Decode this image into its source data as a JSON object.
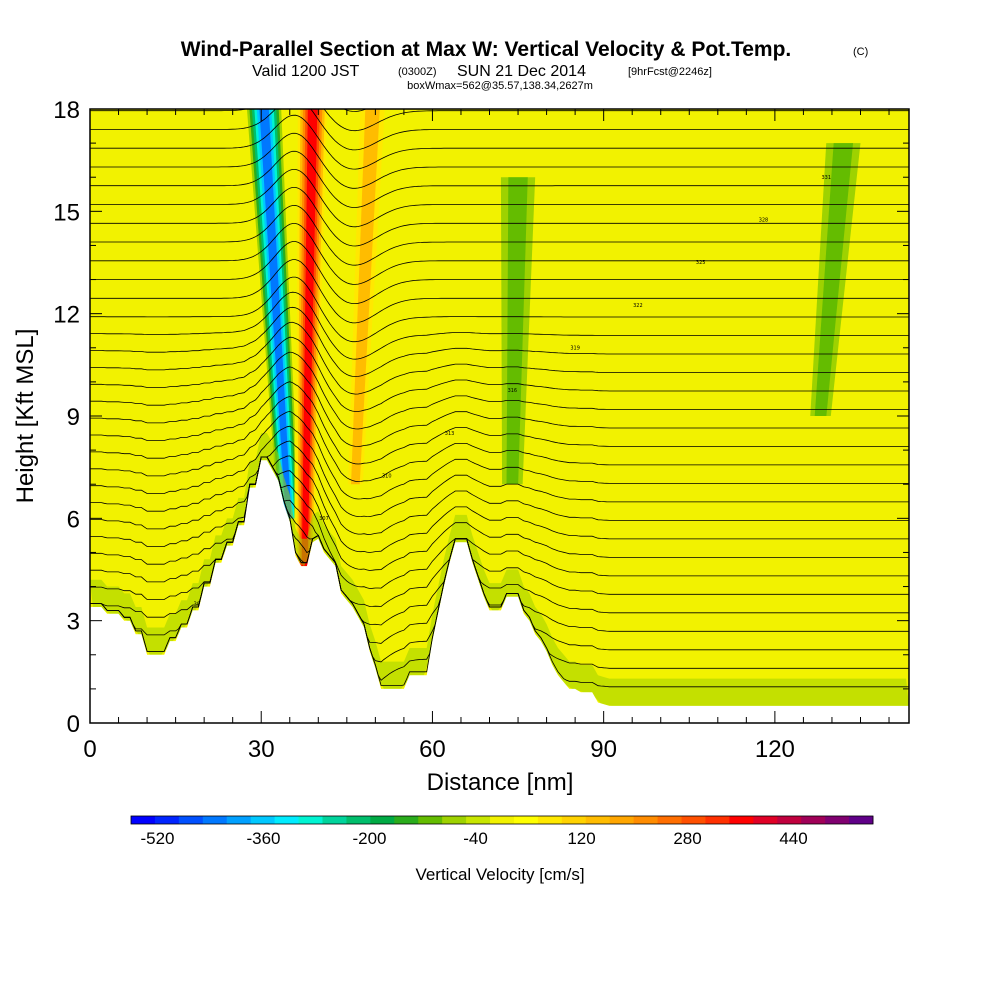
{
  "header": {
    "title": "Wind-Parallel Section at Max W: Vertical Velocity & Pot.Temp.",
    "copyright": "(C)",
    "valid_prefix": "Valid 1200 JST",
    "valid_zulu": "(0300Z)",
    "valid_date": "SUN 21 Dec 2014",
    "forecast": "[9hrFcst@2246z]",
    "boxwmax": "boxWmax=562@35.57,138.34,2627m"
  },
  "chart_data": {
    "type": "heatmap",
    "title": "Wind-Parallel Section at Max W: Vertical Velocity & Pot.Temp.",
    "xlabel": "Distance [nm]",
    "ylabel": "Height [Kft MSL]",
    "xlim": [
      0,
      143.5
    ],
    "ylim": [
      0,
      18
    ],
    "x_ticks": [
      "0",
      "30",
      "60",
      "90",
      "120"
    ],
    "x_tick_values": [
      0,
      30,
      60,
      90,
      120
    ],
    "y_ticks": [
      "0",
      "3",
      "6",
      "9",
      "12",
      "15",
      "18"
    ],
    "y_tick_values": [
      0,
      3,
      6,
      9,
      12,
      15,
      18
    ],
    "background_level_cms": 40,
    "terrain_kft": [
      [
        0,
        3.4
      ],
      [
        2,
        3.4
      ],
      [
        3,
        3.2
      ],
      [
        5,
        3.2
      ],
      [
        6,
        3.0
      ],
      [
        7,
        3.0
      ],
      [
        8,
        2.6
      ],
      [
        9,
        2.6
      ],
      [
        10,
        2.0
      ],
      [
        13,
        2.0
      ],
      [
        14,
        2.4
      ],
      [
        15,
        2.4
      ],
      [
        16,
        2.8
      ],
      [
        17,
        2.8
      ],
      [
        18,
        3.3
      ],
      [
        19,
        3.3
      ],
      [
        20,
        4.0
      ],
      [
        21,
        4.0
      ],
      [
        22,
        4.7
      ],
      [
        23,
        4.7
      ],
      [
        24,
        5.2
      ],
      [
        25,
        5.2
      ],
      [
        26,
        5.8
      ],
      [
        27,
        5.8
      ],
      [
        28,
        6.9
      ],
      [
        29,
        6.9
      ],
      [
        30,
        7.7
      ],
      [
        31,
        7.7
      ],
      [
        32,
        7.4
      ],
      [
        33,
        7.1
      ],
      [
        34,
        6.4
      ],
      [
        35,
        5.9
      ],
      [
        36,
        4.9
      ],
      [
        37,
        4.6
      ],
      [
        38,
        4.6
      ],
      [
        39,
        5.3
      ],
      [
        40,
        5.4
      ],
      [
        41,
        5.0
      ],
      [
        43,
        4.6
      ],
      [
        44,
        3.8
      ],
      [
        46,
        3.4
      ],
      [
        48,
        2.8
      ],
      [
        49,
        2.1
      ],
      [
        50,
        1.6
      ],
      [
        51,
        1.0
      ],
      [
        55,
        1.0
      ],
      [
        56,
        1.4
      ],
      [
        59,
        1.4
      ],
      [
        60,
        2.4
      ],
      [
        61,
        3.2
      ],
      [
        62,
        4.0
      ],
      [
        63,
        4.7
      ],
      [
        64,
        5.3
      ],
      [
        66,
        5.3
      ],
      [
        67,
        4.7
      ],
      [
        68,
        4.2
      ],
      [
        69,
        3.7
      ],
      [
        70,
        3.3
      ],
      [
        72,
        3.3
      ],
      [
        73,
        3.7
      ],
      [
        75,
        3.7
      ],
      [
        76,
        3.2
      ],
      [
        77,
        3.0
      ],
      [
        78,
        2.6
      ],
      [
        79,
        2.4
      ],
      [
        80,
        2.1
      ],
      [
        81,
        1.7
      ],
      [
        82,
        1.4
      ],
      [
        83,
        1.2
      ],
      [
        84,
        1.0
      ],
      [
        85,
        1.0
      ],
      [
        86,
        0.9
      ],
      [
        88,
        0.9
      ],
      [
        89,
        0.6
      ],
      [
        91,
        0.5
      ],
      [
        143.5,
        0.5
      ]
    ],
    "velocity_features": [
      {
        "name": "downdraft",
        "peak_cms": -440,
        "x_top": 30.5,
        "x_bottom": 34.8,
        "z_top": 18,
        "z_bottom": 6
      },
      {
        "name": "updraft",
        "peak_cms": 440,
        "x_top": 39.0,
        "x_bottom": 37.6,
        "z_top": 18,
        "z_bottom": 4.6
      },
      {
        "name": "secondary updraft",
        "peak_cms": 200,
        "x_top": 49.5,
        "x_bottom": 46.5,
        "z_top": 18,
        "z_bottom": 7
      },
      {
        "name": "weak sink east",
        "peak_cms": -60,
        "x_top": 75.0,
        "x_bottom": 74.0,
        "z_top": 16,
        "z_bottom": 7
      },
      {
        "name": "weak sink far east",
        "peak_cms": -60,
        "x_top": 132.0,
        "x_bottom": 128.0,
        "z_top": 17,
        "z_bottom": 9
      }
    ],
    "potential_temperature_contours": {
      "interval_kft": 0.55,
      "count": 33,
      "labels_K": [
        "298",
        "301",
        "304",
        "307",
        "310",
        "313",
        "316",
        "319",
        "322",
        "325",
        "328",
        "331"
      ]
    },
    "colorbar": {
      "label": "Vertical Velocity [cm/s]",
      "min": -560,
      "max": 560,
      "step": 40,
      "tick_labels": [
        "-520",
        "-360",
        "-200",
        "-40",
        "120",
        "280",
        "440"
      ],
      "tick_values": [
        -520,
        -360,
        -200,
        -40,
        120,
        280,
        440
      ],
      "colors": [
        "#0000ff",
        "#0024ff",
        "#0050ff",
        "#0078ff",
        "#00a0ff",
        "#00c8ff",
        "#00ecff",
        "#00f4d2",
        "#00d49c",
        "#00be6c",
        "#00aa44",
        "#2aac1c",
        "#64bc00",
        "#9ed200",
        "#c8e600",
        "#f2f200",
        "#ffff00",
        "#ffe800",
        "#ffd200",
        "#ffbc00",
        "#ffa600",
        "#ff8c00",
        "#ff6e00",
        "#ff5000",
        "#ff3000",
        "#ff0000",
        "#e00026",
        "#c0003e",
        "#a00058",
        "#800070",
        "#600088"
      ]
    }
  }
}
